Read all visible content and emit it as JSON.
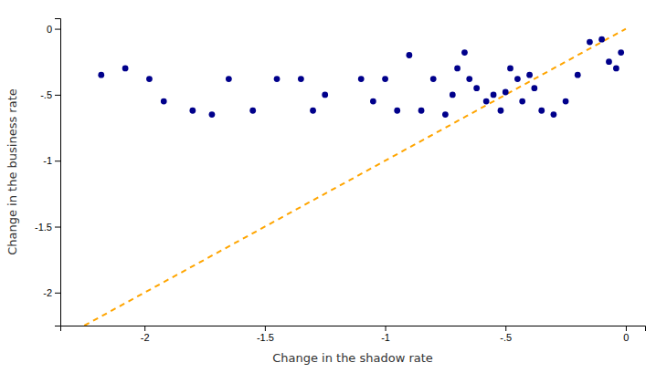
{
  "chart_data": {
    "type": "scatter",
    "xlabel": "Change in the shadow rate",
    "ylabel": "Change in the business rate",
    "xlim": [
      -2.35,
      0.08
    ],
    "ylim": [
      -2.25,
      0.08
    ],
    "xticks": [
      -2,
      -1.5,
      -1,
      {
        "value": -0.5,
        "label": "-.5"
      },
      0
    ],
    "yticks": [
      0,
      {
        "value": -0.5,
        "label": "-.5"
      },
      -1,
      -1.5,
      -2
    ],
    "grid": false,
    "series": [
      {
        "type": "line",
        "line_style": "dashed",
        "color": "#FFA500",
        "x": [
          -2.25,
          0.0
        ],
        "values": [
          -2.25,
          0.0
        ]
      },
      {
        "type": "scatter",
        "marker": "circle",
        "color": "#00008B",
        "x": [
          -2.18,
          -2.08,
          -1.98,
          -1.92,
          -1.8,
          -1.72,
          -1.65,
          -1.55,
          -1.45,
          -1.35,
          -1.3,
          -1.25,
          -1.1,
          -1.05,
          -1.0,
          -0.95,
          -0.9,
          -0.85,
          -0.8,
          -0.75,
          -0.72,
          -0.7,
          -0.67,
          -0.65,
          -0.62,
          -0.58,
          -0.55,
          -0.52,
          -0.5,
          -0.48,
          -0.45,
          -0.43,
          -0.4,
          -0.38,
          -0.35,
          -0.3,
          -0.25,
          -0.2,
          -0.15,
          -0.1,
          -0.07,
          -0.04,
          -0.02
        ],
        "values": [
          -0.35,
          -0.3,
          -0.38,
          -0.55,
          -0.62,
          -0.65,
          -0.38,
          -0.62,
          -0.38,
          -0.38,
          -0.62,
          -0.5,
          -0.38,
          -0.55,
          -0.38,
          -0.62,
          -0.2,
          -0.62,
          -0.38,
          -0.65,
          -0.5,
          -0.3,
          -0.18,
          -0.38,
          -0.45,
          -0.55,
          -0.5,
          -0.62,
          -0.48,
          -0.3,
          -0.38,
          -0.55,
          -0.35,
          -0.45,
          -0.62,
          -0.65,
          -0.55,
          -0.35,
          -0.1,
          -0.08,
          -0.25,
          -0.3,
          -0.18
        ]
      }
    ]
  }
}
